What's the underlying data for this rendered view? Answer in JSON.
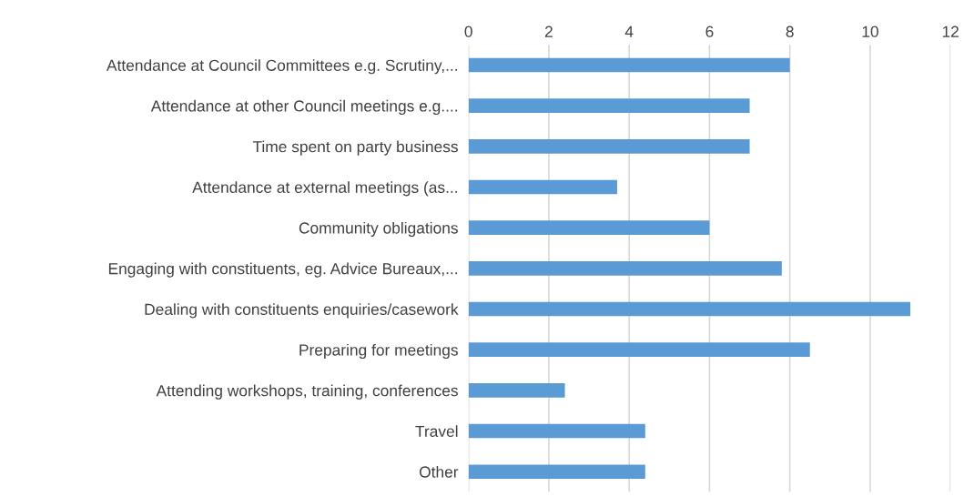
{
  "chart_data": {
    "type": "bar",
    "orientation": "horizontal",
    "categories": [
      "Attendance at Council Committees e.g. Scrutiny,...",
      "Attendance at other Council meetings e.g....",
      "Time spent on party business",
      "Attendance at external meetings (as...",
      "Community obligations",
      "Engaging with constituents, eg. Advice Bureaux,...",
      "Dealing with constituents enquiries/casework",
      "Preparing for meetings",
      "Attending workshops, training, conferences",
      "Travel",
      "Other"
    ],
    "values": [
      8,
      7,
      7,
      3.7,
      6,
      7.8,
      11,
      8.5,
      2.4,
      4.4,
      4.4
    ],
    "color": "#5b9bd5",
    "xlim": [
      0,
      12
    ],
    "xticks": [
      0,
      2,
      4,
      6,
      8,
      10,
      12
    ],
    "grid": "x"
  }
}
